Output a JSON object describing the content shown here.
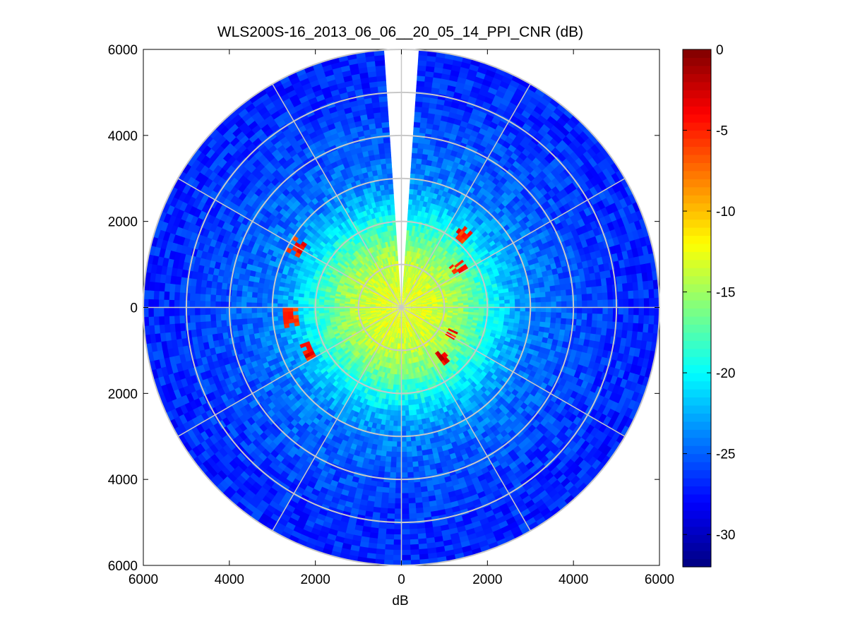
{
  "chart_data": {
    "type": "heatmap",
    "subtype": "polar-ppi",
    "title": "WLS200S-16_2013_06_06__20_05_14_PPI_CNR (dB)",
    "xlabel": "dB",
    "ylabel": "",
    "xlim": [
      -6000,
      6000
    ],
    "ylim": [
      -6000,
      6000
    ],
    "x_ticks": [
      -6000,
      -4000,
      -2000,
      0,
      2000,
      4000,
      6000
    ],
    "x_tick_labels": [
      "6000",
      "4000",
      "2000",
      "0",
      "2000",
      "4000",
      "6000"
    ],
    "y_ticks": [
      6000,
      4000,
      2000,
      0,
      -2000,
      -4000,
      -6000
    ],
    "y_tick_labels": [
      "6000",
      "4000",
      "2000",
      "0",
      "2000",
      "4000",
      "6000"
    ],
    "max_range_m": 6000,
    "range_rings_m": [
      1000,
      2000,
      3000,
      4000,
      5000,
      6000
    ],
    "spoke_interval_deg": 30,
    "missing_sector_deg": [
      -4,
      4
    ],
    "colorbar": {
      "min": -32,
      "max": 0,
      "ticks": [
        0,
        -5,
        -10,
        -15,
        -20,
        -25,
        -30
      ],
      "tick_labels": [
        "0",
        "-5",
        "-10",
        "-15",
        "-20",
        "-25",
        "-30"
      ],
      "colormap": "jet"
    },
    "cnr_profile": {
      "range_m": [
        0,
        500,
        1000,
        1500,
        2000,
        2500,
        3000,
        4000,
        5000,
        6000
      ],
      "cnr_db": [
        -13,
        -13,
        -14,
        -16,
        -19,
        -22,
        -24,
        -25.5,
        -26.5,
        -27
      ]
    },
    "high_cnr_patches": [
      {
        "azimuth_deg": 300,
        "range_m": 2800,
        "cnr_db": -5
      },
      {
        "azimuth_deg": 265,
        "range_m": 2600,
        "cnr_db": -6
      },
      {
        "azimuth_deg": 245,
        "range_m": 2400,
        "cnr_db": -4
      },
      {
        "azimuth_deg": 40,
        "range_m": 2200,
        "cnr_db": -5
      },
      {
        "azimuth_deg": 55,
        "range_m": 1600,
        "cnr_db": -4
      },
      {
        "azimuth_deg": 140,
        "range_m": 1500,
        "cnr_db": -3
      },
      {
        "azimuth_deg": 118,
        "range_m": 1300,
        "cnr_db": -5
      }
    ],
    "grid": true,
    "legend": "none"
  }
}
